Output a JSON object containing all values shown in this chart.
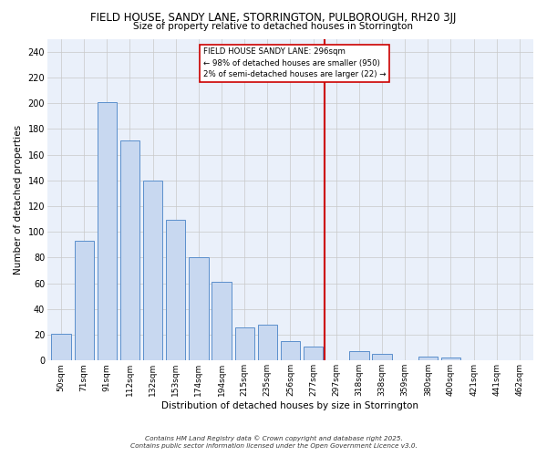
{
  "title": "FIELD HOUSE, SANDY LANE, STORRINGTON, PULBOROUGH, RH20 3JJ",
  "subtitle": "Size of property relative to detached houses in Storrington",
  "xlabel": "Distribution of detached houses by size in Storrington",
  "ylabel": "Number of detached properties",
  "bar_labels": [
    "50sqm",
    "71sqm",
    "91sqm",
    "112sqm",
    "132sqm",
    "153sqm",
    "174sqm",
    "194sqm",
    "215sqm",
    "235sqm",
    "256sqm",
    "277sqm",
    "297sqm",
    "318sqm",
    "338sqm",
    "359sqm",
    "380sqm",
    "400sqm",
    "421sqm",
    "441sqm",
    "462sqm"
  ],
  "bar_values": [
    21,
    93,
    201,
    171,
    140,
    109,
    80,
    61,
    26,
    28,
    15,
    11,
    0,
    7,
    5,
    0,
    3,
    2,
    0,
    0,
    0
  ],
  "bar_color": "#c8d8f0",
  "bar_edge_color": "#5b8fcc",
  "vline_x_index": 12,
  "vline_color": "#cc0000",
  "vline_label_title": "FIELD HOUSE SANDY LANE: 296sqm",
  "vline_label_line2": "← 98% of detached houses are smaller (950)",
  "vline_label_line3": "2% of semi-detached houses are larger (22) →",
  "ylim": [
    0,
    250
  ],
  "yticks": [
    0,
    20,
    40,
    60,
    80,
    100,
    120,
    140,
    160,
    180,
    200,
    220,
    240
  ],
  "bg_color": "#eaf0fa",
  "grid_color": "#c8c8c8",
  "footer_line1": "Contains HM Land Registry data © Crown copyright and database right 2025.",
  "footer_line2": "Contains public sector information licensed under the Open Government Licence v3.0."
}
